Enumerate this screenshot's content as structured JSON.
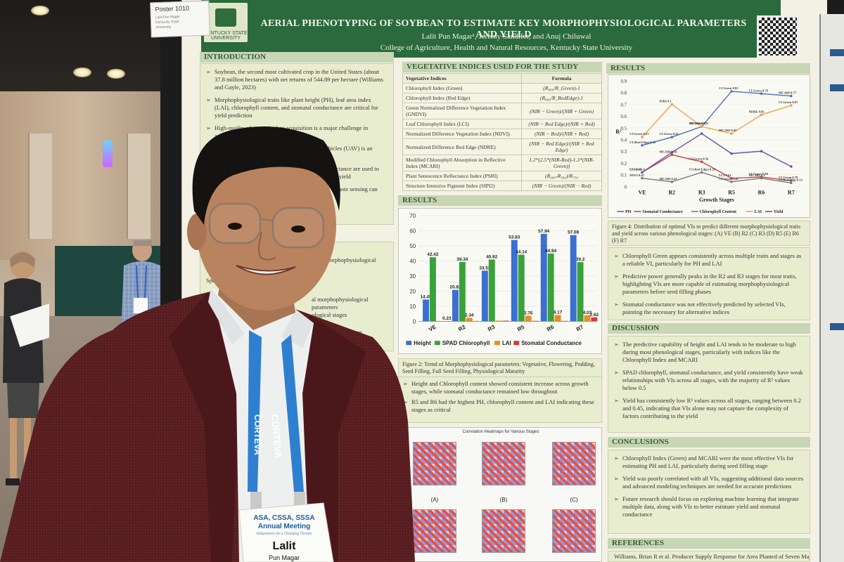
{
  "poster_tag": {
    "title": "Poster 1010",
    "lines": [
      "Lalit Pun Magar",
      "Kentucky State",
      "University"
    ]
  },
  "logo": {
    "text": "KENTUCKY STATE UNIVERSITY"
  },
  "header": {
    "title": "AERIAL PHENOTYPING OF SOYBEAN TO ESTIMATE KEY MORPHOPHYSIOLOGICAL PARAMETERS AND YIELD",
    "authors": "Lalit Pun Magar¹, Jeremy Sandifer, and Anuj Chiluwal",
    "affiliation": "College of Agriculture, Health and Natural Resources, Kentucky State University"
  },
  "introduction": {
    "heading": "INTRODUCTION",
    "bullets": [
      "Soybean, the second most cultivated crop in the United States (about 37.8 million hectares) with net returns of 544.89 per hectare (Williams and Gayle, 2023)",
      "Morphophysiological traits like plant height (PH), leaf area index (LAI), chlorophyll content, and stomatal conductance are critical for yield prediction",
      "High-quality phenotypic data acquisition is a major challenge in agriculture",
      "Remote sensing (RS) using unmanned aerial vehicles (UAV) is an efficient method for monitoring crops",
      "Vegetation indices (VIs) derived from canopy reflectance are used to assess morphophysiological parameters and predict yield",
      "Integrating morphophysiological data with UAV remote sensing can improve estimates of crop growth and yield"
    ]
  },
  "objectives_partial": [
    "ating morphophysiological",
    "Speci",
    "al morphophysiological parameters",
    "ological stages",
    "yield across different"
  ],
  "vi_section": {
    "heading": "VEGETATIVE INDICES USED FOR THE STUDY",
    "col_index": "Vegetative Indices",
    "col_formula": "Formula",
    "rows": [
      {
        "name": "Chlorophyll Index (Green)",
        "formula": "(R₈₀₀/R_Green)-1"
      },
      {
        "name": "Chlorophyll Index (Red Edge)",
        "formula": "(R₈₀₀/R_RedEdge)-1"
      },
      {
        "name": "Green Normalized Difference Vegetation Index (GNDVI)",
        "formula": "(NIR − Green)/(NIR + Green)"
      },
      {
        "name": "Leaf Chlorophyll Index (LCI)",
        "formula": "(NIR − Red Edge)/(NIR + Red)"
      },
      {
        "name": "Normalized Difference Vegetation Index (NDVI)",
        "formula": "(NIR − Red)/(NIR + Red)"
      },
      {
        "name": "Normalized Difference Red Edge (NDRE)",
        "formula": "(NIR − Red Edge)/(NIR + Red Edge)"
      },
      {
        "name": "Modified Chlorophyll Absorption in Reflective Index (MCARI)",
        "formula": "1.2*(2.5*(NIR-Red)-1.3*(NIR-Green))"
      },
      {
        "name": "Plant Senescence Reflectance Index (PSRI)",
        "formula": "(R₆₈₀-R₅₀₀)/R₇₅₀"
      },
      {
        "name": "Structure Intensive Pigment Index (SIPI2)",
        "formula": "(NIR − Green)/(NIR − Red)"
      }
    ]
  },
  "results_left_heading": "RESULTS",
  "chart_data": [
    {
      "type": "bar",
      "categories": [
        "VE",
        "R2",
        "R3",
        "R5",
        "R6",
        "R7"
      ],
      "series": [
        {
          "name": "Height",
          "color": "#3b6fd0",
          "values": [
            14.45,
            20.82,
            33.53,
            53.83,
            57.94,
            57.08
          ]
        },
        {
          "name": "SPAD Chlorophyll",
          "color": "#39a23a",
          "values": [
            42.42,
            39.34,
            40.92,
            44.14,
            44.94,
            39.2
          ]
        },
        {
          "name": "LAI",
          "color": "#f08a24",
          "values": [
            0.23,
            2.34,
            0.45,
            3.76,
            4.17,
            4.03
          ]
        },
        {
          "name": "Stomatal Conductance",
          "color": "#d23a3a",
          "values": [
            0.23,
            0.25,
            0.45,
            0.35,
            0.33,
            2.62
          ]
        }
      ],
      "data_labels": {
        "Height": [
          "14.45",
          "20.82",
          "33.53",
          "53.83",
          "57.94",
          "57.08"
        ],
        "SPAD Chlorophyll": [
          "42.42",
          "39.34",
          "40.92",
          "44.14",
          "44.94",
          "39.2"
        ],
        "LAI": [
          "",
          "2.34",
          "",
          "3.76",
          "4.17",
          "4.03"
        ],
        "Stomatal Conductance": [
          "0.23",
          "",
          "",
          "",
          "",
          "2.62"
        ]
      },
      "yticks": [
        "0",
        "10",
        "20",
        "30",
        "40",
        "50",
        "60",
        "70"
      ],
      "ylim": [
        0,
        70
      ],
      "legend": "bottom"
    },
    {
      "type": "line",
      "categories": [
        "VE",
        "R2",
        "R3",
        "R5",
        "R6",
        "R7"
      ],
      "xlabel": "Growth Stages",
      "ylabel": "R²",
      "yticks": [
        "0",
        "0.1",
        "0.2",
        "0.3",
        "0.4",
        "0.5",
        "0.6",
        "0.7",
        "0.8",
        "0.9"
      ],
      "ylim": [
        0,
        0.9
      ],
      "series": [
        {
          "name": "PH",
          "color": "#4a6fc1",
          "values": [
            0.35,
            0.42,
            0.51,
            0.81,
            0.79,
            0.77
          ]
        },
        {
          "name": "Stomatal Conductance",
          "color": "#d0433a",
          "values": [
            0.12,
            0.27,
            0.21,
            0.07,
            0.08,
            0.05
          ]
        },
        {
          "name": "Chlorophyll Content",
          "color": "#7a7a7a",
          "values": [
            0.07,
            0.04,
            0.12,
            0.04,
            0.07,
            0.03
          ]
        },
        {
          "name": "LAI",
          "color": "#f0a050",
          "values": [
            0.42,
            0.7,
            0.51,
            0.45,
            0.61,
            0.69
          ]
        },
        {
          "name": "Yield",
          "color": "#6a4fb0",
          "values": [
            0.12,
            0.29,
            0.45,
            0.28,
            0.3,
            0.17
          ]
        }
      ],
      "annotations": [
        "CI (Red Edge) 0.35",
        "CI Green 0.42",
        "CI Green 0.51",
        "CI Green 0.81",
        "CI Green 0.79",
        "MCARI 0.77",
        "LCI 0.59",
        "MCARI 0.56",
        "CI Green 0.56",
        "LCI 0.61",
        "CI Green 0.69",
        "CI Green 0.70",
        "NDVI 0.45",
        "MCARI 0.41",
        "CI (Red Edge) 0.29",
        "CI Green 0.28",
        "MCARI 0.3",
        "CI Red Edge 0.12",
        "CI Green 0.21",
        "PSRI 0.1",
        "MCARI 0.17",
        "MCARI 0.07",
        "NDRE 0.05",
        "CI Green 0.07",
        "CI Green 0"
      ],
      "legend": "bottom"
    }
  ],
  "figure2_caption": "Figure 2: Trend of Morphophysiological parameters: Vegetative, Flowering, Podding, Seed Filling, Full Seed Filling, Physiological Maturity",
  "results_notes": [
    "Height and Chlorophyll content showed consistent increase across growth stages, while stomatal conductance remained low throughout",
    "R5 and R6 had the highest PH, chlorophyll content and LAI indicating these stages as critical"
  ],
  "heatmaps": {
    "title": "Correlation Heatmaps for Various Stages",
    "labels": [
      "(A)",
      "(B)",
      "(C)"
    ]
  },
  "results_right_heading": "RESULTS",
  "figure4_caption": "Figure 4: Distribution of optimal VIs to predict different morphophysiological traits and yield across various phenological stages: (A) VE (B) R2 (C) R3 (D) R5 (E) R6 (F) R7",
  "results_right_notes": [
    "Chlorophyll Green appears consistently across multiple traits and stages as a reliable VI, particularly for PH and LAI",
    "Predictive power generally peaks in the R2 and R3 stages for most traits, highlighting VIs are more capable of estimating morphophysiological parameters before seed filling phases",
    "Stomatal conductance was not effectively predicted by selected VIs, pointing the necessary for alternative indices"
  ],
  "discussion": {
    "heading": "DISCUSSION",
    "bullets": [
      "The predictive capability of height and LAI tends to be moderate to high during most phenological stages, particularly with indices like the Chlorophyll Index and MCARI",
      "SPAD chlorophyll, stomatal conductance, and yield consistently have weak relationships with VIs across all stages, with the majority of R² values below 0.5",
      "Yield has consistently low R² values across all stages, ranging between 0.2 and 0.45, indicating that VIs alone may not capture the complexity of factors contributing to the yield"
    ]
  },
  "conclusions": {
    "heading": "CONCLUSIONS",
    "bullets": [
      "Chlorophyll Index (Green) and MCARI were the most effective VIs for estimating PH and LAI, particularly during seed filling stage",
      "Yield was poorly correlated with all VIs, suggesting additional data sources and advanced modeling techniques are needed for accurate predictions",
      "Future research should focus on exploring machine learning that integrate multiple data, along with VIs to better estimate yield and stomatal conductance"
    ]
  },
  "references": {
    "heading": "REFERENCES",
    "first": "Williams, Brian R et al. Producer Supply Response for Area Planted of Seven Major"
  },
  "lanyard": {
    "text": "CORTEVA"
  },
  "badge": {
    "org": "ASA, CSSA, SSSA",
    "meeting": "Annual Meeting",
    "tagline": "Adaptations for a Changing Climate",
    "name": "Lalit",
    "surname": "Pun Magar"
  },
  "colors": {
    "header_green": "#2a6a3c",
    "section_bar": "#c7d6b5",
    "box_bg": "#e9edcf",
    "jacket": "#5a1f22"
  }
}
